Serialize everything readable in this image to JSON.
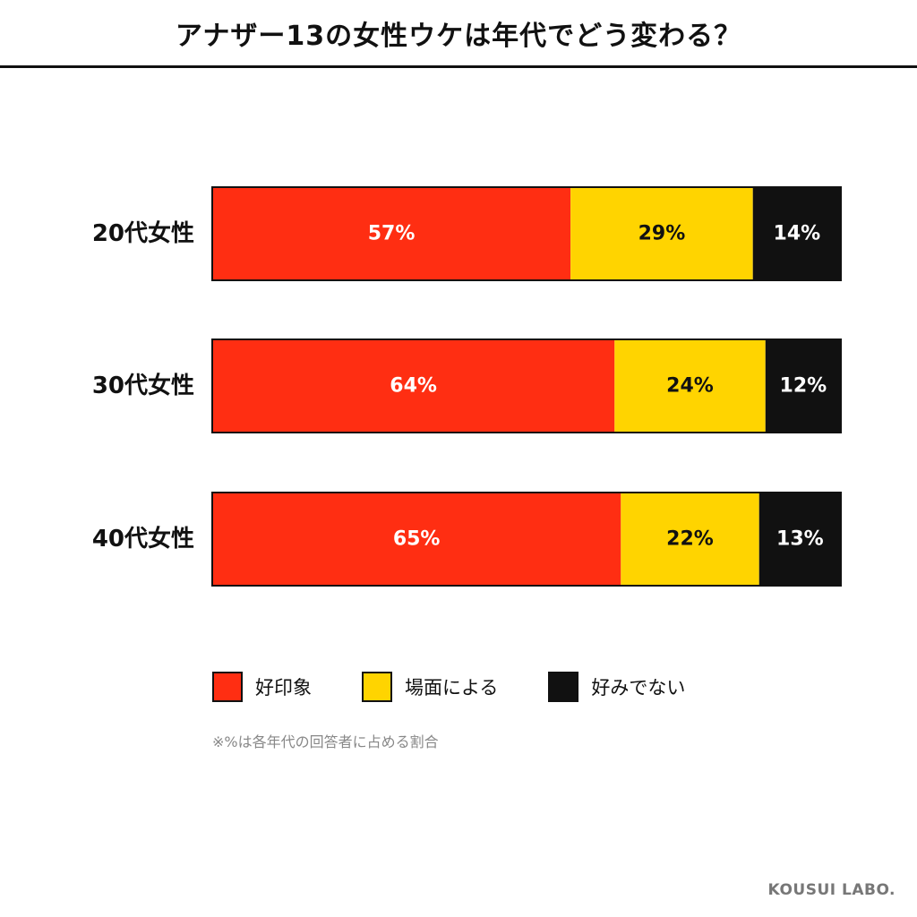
{
  "header": {
    "title": "アナザー13の女性ウケは年代でどう変わる？"
  },
  "colors": {
    "positive": "#ff2e12",
    "neutral": "#ffd400",
    "negative": "#111111",
    "border": "#111111"
  },
  "chart_data": {
    "type": "bar",
    "orientation": "horizontal",
    "stacked": true,
    "normalized": true,
    "title": "アナザー13の女性ウケは年代でどう変わる？",
    "categories": [
      "20代女性",
      "30代女性",
      "40代女性"
    ],
    "series": [
      {
        "name": "好印象",
        "values": [
          57,
          64,
          65
        ],
        "color": "#ff2e12",
        "label_color": "#ffffff"
      },
      {
        "name": "場面による",
        "values": [
          29,
          24,
          22
        ],
        "color": "#ffd400",
        "label_color": "#111111"
      },
      {
        "name": "好みでない",
        "values": [
          14,
          12,
          13
        ],
        "color": "#111111",
        "label_color": "#ffffff"
      }
    ],
    "value_suffix": "%",
    "xlim": [
      0,
      100
    ],
    "grid": false,
    "legend_position": "bottom-left"
  },
  "legend": {
    "items": [
      {
        "label": "好印象",
        "color": "#ff2e12"
      },
      {
        "label": "場面による",
        "color": "#ffd400"
      },
      {
        "label": "好みでない",
        "color": "#111111"
      }
    ]
  },
  "note": "※%は各年代の回答者に占める割合",
  "brand": "KOUSUI LABO."
}
